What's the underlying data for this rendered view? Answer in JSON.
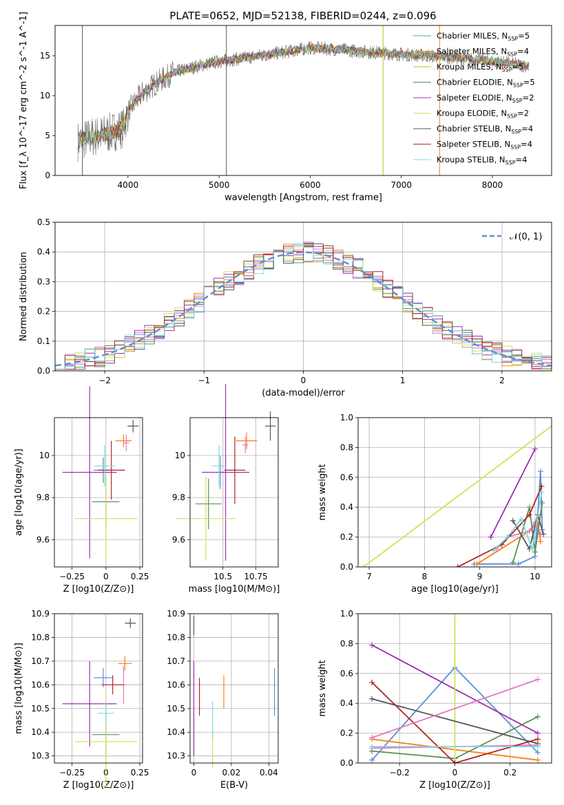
{
  "figure": {
    "title": "PLATE=0652, MJD=52138, FIBERID=0244, z=0.096"
  },
  "models": [
    {
      "name": "Chabrier MILES, N$_{SSP}$=5",
      "color": "#5f9ea0"
    },
    {
      "name": "Salpeter MILES, N$_{SSP}$=4",
      "color": "#ff7f0e"
    },
    {
      "name": "Kroupa MILES, N$_{SSP}$=5",
      "color": "#bcbd22"
    },
    {
      "name": "Chabrier ELODIE, N$_{SSP}$=5",
      "color": "#5b8c5a"
    },
    {
      "name": "Salpeter ELODIE, N$_{SSP}$=2",
      "color": "#9b30b0"
    },
    {
      "name": "Kroupa ELODIE, N$_{SSP}$=2",
      "color": "#d4e157"
    },
    {
      "name": "Chabrier STELIB, N$_{SSP}$=4",
      "color": "#555555"
    },
    {
      "name": "Salpeter STELIB, N$_{SSP}$=4",
      "color": "#b22222"
    },
    {
      "name": "Kroupa STELIB, N$_{SSP}$=4",
      "color": "#80d8e0"
    }
  ],
  "legend_labels": [
    {
      "prefix": "Chabrier MILES, N",
      "sub": "SSP",
      "suffix": "=5"
    },
    {
      "prefix": "Salpeter MILES, N",
      "sub": "SSP",
      "suffix": "=4"
    },
    {
      "prefix": "Kroupa MILES, N",
      "sub": "SSP",
      "suffix": "=5"
    },
    {
      "prefix": "Chabrier ELODIE, N",
      "sub": "SSP",
      "suffix": "=5"
    },
    {
      "prefix": "Salpeter ELODIE, N",
      "sub": "SSP",
      "suffix": "=2"
    },
    {
      "prefix": "Kroupa ELODIE, N",
      "sub": "SSP",
      "suffix": "=2"
    },
    {
      "prefix": "Chabrier STELIB, N",
      "sub": "SSP",
      "suffix": "=4"
    },
    {
      "prefix": "Salpeter STELIB, N",
      "sub": "SSP",
      "suffix": "=4"
    },
    {
      "prefix": "Kroupa STELIB, N",
      "sub": "SSP",
      "suffix": "=4"
    }
  ],
  "chart_data": [
    {
      "id": "spectrum",
      "type": "line",
      "xlabel": "wavelength [Angstrom, rest frame]",
      "ylabel": "Flux [f_λ 10^-17 erg cm^-2 s^-1 A^-1]",
      "xlim": [
        3200,
        8650
      ],
      "ylim": [
        0,
        18.8
      ],
      "xticks": [
        4000,
        5000,
        6000,
        7000,
        8000
      ],
      "yticks": [
        0,
        5,
        10,
        15
      ],
      "legend": "upper right",
      "grid": false,
      "continuum": {
        "x": [
          3450,
          3600,
          3800,
          3950,
          4000,
          4150,
          4300,
          4500,
          4800,
          5000,
          5200,
          5500,
          5800,
          6000,
          6300,
          6600,
          7000,
          7300,
          7600,
          8000,
          8400
        ],
        "y": [
          4.3,
          4.8,
          5.3,
          6.0,
          8.0,
          10.2,
          11.5,
          12.9,
          13.8,
          14.3,
          14.6,
          15.1,
          15.6,
          16.0,
          15.8,
          15.5,
          15.2,
          15.0,
          14.8,
          14.3,
          13.7
        ]
      },
      "spikes": [
        {
          "x": 3500,
          "y": 18.8,
          "series": "Chabrier STELIB, N$_{SSP}$=4"
        },
        {
          "x": 5080,
          "y": 18.8,
          "series": "Chabrier STELIB, N$_{SSP}$=4"
        },
        {
          "x": 6800,
          "y": 18.8,
          "series": "Kroupa MILES, N$_{SSP}$=5"
        },
        {
          "x": 7420,
          "y": 18.8,
          "series": "Salpeter MILES, N$_{SSP}$=4"
        }
      ]
    },
    {
      "id": "residuals",
      "type": "histogram",
      "xlabel": "(data-model)/error",
      "ylabel": "Normed distribution",
      "xlim": [
        -2.5,
        2.5
      ],
      "ylim": [
        0,
        0.5
      ],
      "xticks": [
        -2,
        -1,
        0,
        1,
        2
      ],
      "yticks": [
        0.0,
        0.1,
        0.2,
        0.3,
        0.4,
        0.5
      ],
      "grid": true,
      "bin_width": 0.1,
      "reference": {
        "name": "𝒩(0, 1)",
        "mean": 0,
        "sigma": 1,
        "color": "#5b8fd6"
      }
    },
    {
      "id": "age-vs-Z",
      "type": "errorbar",
      "xlabel": "Z [log10(Z/Z⊙)]",
      "ylabel": "age [log10(age/yr)]",
      "xlim": [
        -0.38,
        0.27
      ],
      "ylim": [
        9.47,
        10.18
      ],
      "xticks": [
        -0.25,
        0.0,
        0.25
      ],
      "yticks": [
        9.6,
        9.8,
        10.0
      ],
      "grid": true,
      "points": [
        {
          "x": -0.02,
          "y": 9.93,
          "xerr": 0.07,
          "yerr": 0.06
        },
        {
          "x": 0.13,
          "y": 10.07,
          "xerr": 0.06,
          "yerr": 0.03
        },
        {
          "x": 0.15,
          "y": 10.06,
          "xerr": 0.02,
          "yerr": 0.04
        },
        {
          "x": 0.0,
          "y": 9.78,
          "xerr": 0.1,
          "yerr": 0.12
        },
        {
          "x": -0.12,
          "y": 9.92,
          "xerr": 0.2,
          "yerr": 0.41
        },
        {
          "x": 0.0,
          "y": 9.7,
          "xerr": 0.23,
          "yerr": 0.21
        },
        {
          "x": 0.2,
          "y": 10.14,
          "xerr": 0.04,
          "yerr": 0.03
        },
        {
          "x": 0.04,
          "y": 9.93,
          "xerr": 0.1,
          "yerr": 0.14
        },
        {
          "x": -0.01,
          "y": 9.95,
          "xerr": 0.08,
          "yerr": 0.1
        }
      ]
    },
    {
      "id": "age-vs-mass",
      "type": "errorbar",
      "xlabel": "mass [log10(M/M⊙)]",
      "ylabel": "",
      "xlim": [
        10.25,
        10.92
      ],
      "ylim": [
        9.47,
        10.18
      ],
      "xticks": [
        10.5,
        10.75
      ],
      "yticks": [
        9.6,
        9.8,
        10.0
      ],
      "grid": true,
      "points": [
        {
          "x": 10.48,
          "y": 9.92,
          "xerr": 0.03,
          "yerr": 0.08
        },
        {
          "x": 10.68,
          "y": 10.07,
          "xerr": 0.08,
          "yerr": 0.04
        },
        {
          "x": 10.67,
          "y": 10.05,
          "xerr": 0.02,
          "yerr": 0.04
        },
        {
          "x": 10.39,
          "y": 9.77,
          "xerr": 0.1,
          "yerr": 0.12
        },
        {
          "x": 10.52,
          "y": 9.92,
          "xerr": 0.18,
          "yerr": 0.42
        },
        {
          "x": 10.37,
          "y": 9.7,
          "xerr": 0.23,
          "yerr": 0.2
        },
        {
          "x": 10.86,
          "y": 10.14,
          "xerr": 0.04,
          "yerr": 0.07
        },
        {
          "x": 10.59,
          "y": 9.93,
          "xerr": 0.08,
          "yerr": 0.16
        },
        {
          "x": 10.47,
          "y": 9.95,
          "xerr": 0.05,
          "yerr": 0.1
        }
      ]
    },
    {
      "id": "weight-vs-age",
      "type": "line",
      "xlabel": "age [log10(age/yr)]",
      "ylabel": "mass weight",
      "xlim": [
        6.8,
        10.3
      ],
      "ylim": [
        0,
        1.0
      ],
      "xticks": [
        7,
        8,
        9,
        10
      ],
      "yticks": [
        0.0,
        0.2,
        0.4,
        0.6,
        0.8,
        1.0
      ],
      "grid": true,
      "series": [
        {
          "x": [
            8.9,
            9.7,
            10.0,
            10.1,
            10.13
          ],
          "y": [
            0.02,
            0.02,
            0.07,
            0.64,
            0.25
          ]
        },
        {
          "x": [
            8.95,
            9.9,
            10.05,
            10.1
          ],
          "y": [
            0.02,
            0.24,
            0.3,
            0.17
          ]
        },
        {
          "x": [
            9.3,
            9.5,
            9.9,
            10.0,
            10.1
          ],
          "y": [
            0.12,
            0.2,
            0.24,
            0.3,
            0.22
          ]
        },
        {
          "x": [
            9.6,
            9.9,
            10.0,
            10.13
          ],
          "y": [
            0.03,
            0.4,
            0.1,
            0.43
          ]
        },
        {
          "x": [
            9.2,
            10.0
          ],
          "y": [
            0.2,
            0.79
          ]
        },
        {
          "x": [
            6.9,
            10.5
          ],
          "y": [
            0.0,
            1.0
          ]
        },
        {
          "x": [
            9.6,
            9.9,
            10.05,
            10.15
          ],
          "y": [
            0.31,
            0.12,
            0.35,
            0.22
          ]
        },
        {
          "x": [
            8.6,
            9.4,
            9.9,
            10.12
          ],
          "y": [
            0.0,
            0.15,
            0.35,
            0.54
          ]
        },
        {
          "x": [
            9.25,
            9.5,
            9.75,
            9.95,
            10.12
          ],
          "y": [
            0.11,
            0.2,
            0.32,
            0.12,
            0.5
          ]
        }
      ]
    },
    {
      "id": "mass-vs-Z",
      "type": "errorbar",
      "xlabel": "Z [log10(Z/Z⊙)]",
      "ylabel": "mass [log10(M/M⊙)]",
      "xlim": [
        -0.38,
        0.27
      ],
      "ylim": [
        10.27,
        10.9
      ],
      "xticks": [
        -0.25,
        0.0,
        0.25
      ],
      "yticks": [
        10.3,
        10.4,
        10.5,
        10.6,
        10.7,
        10.8,
        10.9
      ],
      "grid": true,
      "points": [
        {
          "x": -0.02,
          "y": 10.63,
          "xerr": 0.07,
          "yerr": 0.04
        },
        {
          "x": 0.14,
          "y": 10.69,
          "xerr": 0.05,
          "yerr": 0.03
        },
        {
          "x": 0.13,
          "y": 10.6,
          "xerr": 0.02,
          "yerr": 0.08
        },
        {
          "x": 0.0,
          "y": 10.39,
          "xerr": 0.1,
          "yerr": 0.1
        },
        {
          "x": -0.12,
          "y": 10.52,
          "xerr": 0.2,
          "yerr": 0.18
        },
        {
          "x": 0.0,
          "y": 10.36,
          "xerr": 0.23,
          "yerr": 0.2
        },
        {
          "x": 0.18,
          "y": 10.86,
          "xerr": 0.04,
          "yerr": 0.02
        },
        {
          "x": 0.05,
          "y": 10.6,
          "xerr": 0.08,
          "yerr": 0.04
        },
        {
          "x": 0.0,
          "y": 10.48,
          "xerr": 0.06,
          "yerr": 0.05
        }
      ]
    },
    {
      "id": "mass-vs-EBV",
      "type": "errorbar",
      "xlabel": "E(B-V)",
      "ylabel": "",
      "xlim": [
        -0.002,
        0.045
      ],
      "ylim": [
        10.27,
        10.9
      ],
      "xticks": [
        0.0,
        0.02,
        0.04
      ],
      "yticks": [
        10.3,
        10.4,
        10.5,
        10.6,
        10.7,
        10.8,
        10.9
      ],
      "grid": true,
      "points": [
        {
          "x": 0.043,
          "y": 10.57,
          "xerr": 0.0,
          "yerr": 0.1
        },
        {
          "x": 0.016,
          "y": 10.57,
          "xerr": 0.0,
          "yerr": 0.07
        },
        {
          "x": 0.0,
          "y": 10.6,
          "xerr": 0.0,
          "yerr": 0.1
        },
        {
          "x": 0.0,
          "y": 10.4,
          "xerr": 0.0,
          "yerr": 0.1
        },
        {
          "x": 0.0,
          "y": 10.5,
          "xerr": 0.0,
          "yerr": 0.2
        },
        {
          "x": 0.01,
          "y": 10.33,
          "xerr": 0.0,
          "yerr": 0.08
        },
        {
          "x": 0.0,
          "y": 10.85,
          "xerr": 0.0,
          "yerr": 0.04
        },
        {
          "x": 0.003,
          "y": 10.55,
          "xerr": 0.0,
          "yerr": 0.08
        },
        {
          "x": 0.01,
          "y": 10.45,
          "xerr": 0.0,
          "yerr": 0.08
        }
      ]
    },
    {
      "id": "weight-vs-Z",
      "type": "line",
      "xlabel": "Z [log10(Z/Z⊙)]",
      "ylabel": "mass weight",
      "xlim": [
        -0.35,
        0.35
      ],
      "ylim": [
        0,
        1.0
      ],
      "xticks": [
        -0.2,
        0.0,
        0.2
      ],
      "yticks": [
        0.0,
        0.2,
        0.4,
        0.6,
        0.8,
        1.0
      ],
      "grid": true,
      "series": [
        {
          "x": [
            -0.3,
            0.0,
            0.3
          ],
          "y": [
            0.02,
            0.64,
            0.07
          ]
        },
        {
          "x": [
            -0.3,
            0.3
          ],
          "y": [
            0.16,
            0.02
          ]
        },
        {
          "x": [
            -0.3,
            0.3
          ],
          "y": [
            0.1,
            0.12
          ]
        },
        {
          "x": [
            -0.3,
            0.0,
            0.3
          ],
          "y": [
            0.08,
            0.03,
            0.31
          ]
        },
        {
          "x": [
            -0.3,
            0.3
          ],
          "y": [
            0.79,
            0.2
          ]
        },
        {
          "x": [
            0.0,
            0.0
          ],
          "y": [
            0.0,
            1.0
          ]
        },
        {
          "x": [
            -0.3,
            0.3
          ],
          "y": [
            0.43,
            0.13
          ]
        },
        {
          "x": [
            -0.3,
            0.0,
            0.3
          ],
          "y": [
            0.54,
            0.0,
            0.16
          ]
        },
        {
          "x": [
            -0.3,
            0.3
          ],
          "y": [
            0.11,
            0.11
          ]
        }
      ],
      "extra": [
        {
          "x": [
            -0.3,
            0.3
          ],
          "y": [
            0.17,
            0.56
          ],
          "color": "#e377c2"
        }
      ]
    }
  ]
}
